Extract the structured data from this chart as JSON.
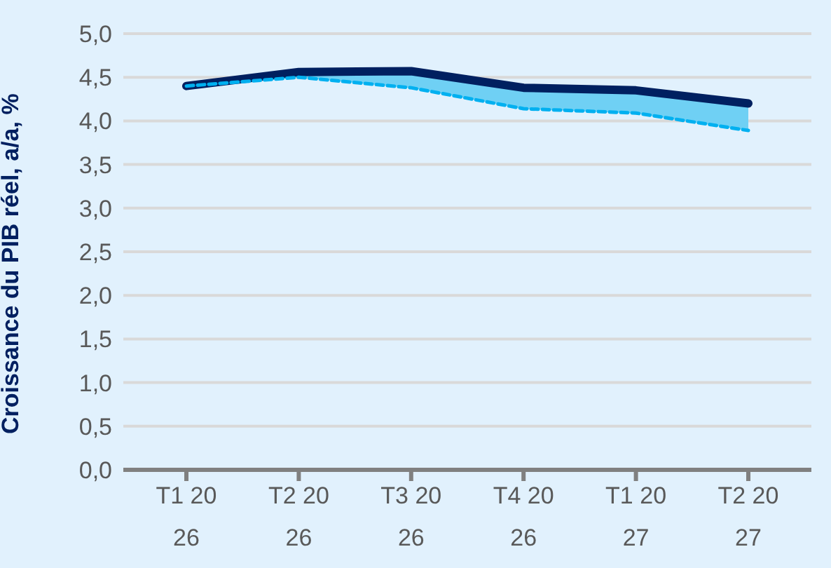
{
  "chart_data": {
    "type": "line",
    "ylabel": "Croissance du PIB réel, a/a, %",
    "categories": [
      "T1 2026",
      "T2 2026",
      "T3 2026",
      "T4 2026",
      "T1 2027",
      "T2 2027"
    ],
    "series": [
      {
        "color": "#002060",
        "values": [
          4.4,
          4.56,
          4.57,
          4.38,
          4.35,
          4.2
        ],
        "line_style": "solid",
        "lower": [
          4.4,
          4.5,
          4.38,
          4.14,
          4.09,
          3.89
        ],
        "upper": [
          4.4,
          4.56,
          4.57,
          4.38,
          4.35,
          4.2
        ]
      },
      {
        "color": "#00b0f0",
        "values": [
          4.4,
          4.5,
          4.38,
          4.14,
          4.09,
          3.89
        ],
        "line_style": "dashed"
      }
    ],
    "ylim": [
      0,
      5
    ],
    "yticks": [
      {
        "value": 0,
        "label": "0,0"
      },
      {
        "value": 0.5,
        "label": "0,5"
      },
      {
        "value": 1,
        "label": "1,0"
      },
      {
        "value": 1.5,
        "label": "1,5"
      },
      {
        "value": 2,
        "label": "2,0"
      },
      {
        "value": 2.5,
        "label": "2,5"
      },
      {
        "value": 3,
        "label": "3,0"
      },
      {
        "value": 3.5,
        "label": "3,5"
      },
      {
        "value": 4,
        "label": "4,0"
      },
      {
        "value": 4.5,
        "label": "4,5"
      },
      {
        "value": 5,
        "label": "5,0"
      }
    ],
    "grid": "y",
    "marker": "none"
  }
}
